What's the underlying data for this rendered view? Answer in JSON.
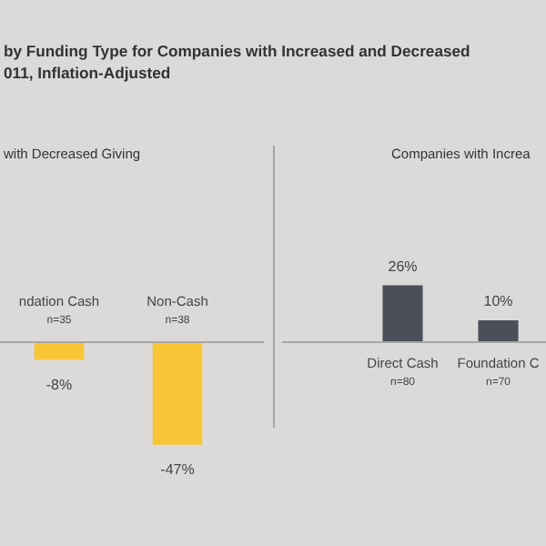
{
  "chart_data": [
    {
      "type": "bar",
      "title": "by Funding Type for Companies with Increased and Decreased\n011, Inflation-Adjusted",
      "subtitle": "with Decreased Giving",
      "categories": [
        "ndation Cash\nn=35",
        "Non-Cash\nn=38"
      ],
      "values": [
        -8,
        -47
      ],
      "colors": [
        "#f7c535",
        "#f7c535"
      ],
      "value_labels": [
        "-8%",
        "-47%"
      ]
    },
    {
      "type": "bar",
      "subtitle": "Companies with Increa",
      "categories": [
        "Direct Cash\nn=80",
        "Foundation C\nn=70"
      ],
      "values": [
        26,
        10
      ],
      "colors": [
        "#4a4f5a",
        "#4a4f5a"
      ],
      "value_labels": [
        "26%",
        "10%"
      ]
    }
  ]
}
